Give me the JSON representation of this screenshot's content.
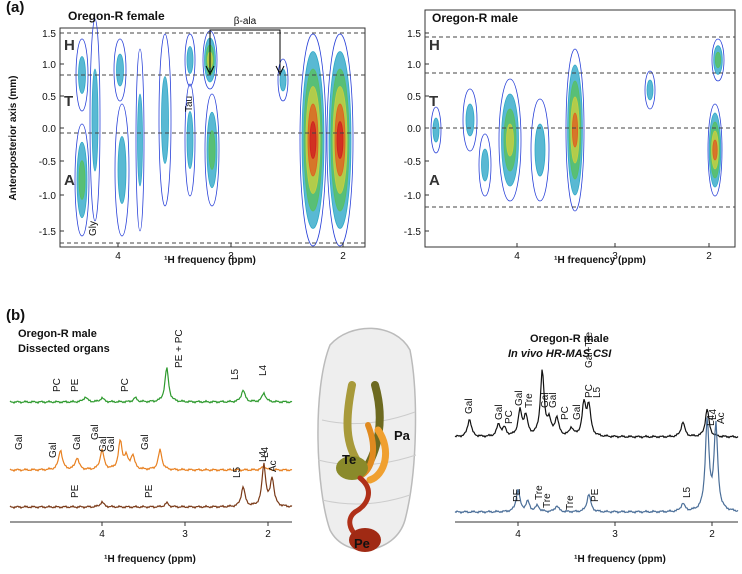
{
  "panel_a": {
    "label": "(a)",
    "left": {
      "title": "Oregon-R female",
      "y_axis_label": "Anteroposterior axis (mm)",
      "x_axis_label": "¹H frequency (ppm)",
      "yticks": [
        "1.5",
        "1.0",
        "0.5",
        "0.0",
        "-0.5",
        "-1.0",
        "-1.5"
      ],
      "xticks": [
        "4",
        "3",
        "2"
      ],
      "regions": [
        "H",
        "T",
        "A"
      ],
      "annotations": [
        "β-ala",
        "Tau",
        "Gly"
      ]
    },
    "right": {
      "title": "Oregon-R male",
      "x_axis_label": "¹H frequency (ppm)",
      "yticks": [
        "1.5",
        "1.0",
        "0.5",
        "0.0",
        "-0.5",
        "-1.0",
        "-1.5"
      ],
      "xticks": [
        "4",
        "3",
        "2"
      ],
      "regions": [
        "H",
        "T",
        "A"
      ]
    }
  },
  "panel_b": {
    "label": "(b)",
    "left": {
      "title_lines": [
        "Oregon-R male",
        "Dissected organs"
      ],
      "x_axis_label": "¹H frequency (ppm)",
      "xticks": [
        "4",
        "3",
        "2"
      ],
      "green_labels": [
        "PC",
        "PE",
        "PC",
        "PE + PC",
        "L5",
        "L4"
      ],
      "orange_labels": [
        "Gal",
        "Gal",
        "Gal",
        "Gal",
        "Gal",
        "Gal",
        "Gal",
        "L4"
      ],
      "brown_labels": [
        "PE",
        "PE",
        "L5",
        "L4",
        "Ac"
      ]
    },
    "illustration_labels": [
      "Pa",
      "Te",
      "Pe"
    ],
    "right": {
      "title_lines": [
        "Oregon-R male",
        "In vivo HR-MAS CSI"
      ],
      "x_axis_label": "¹H frequency (ppm)",
      "xticks": [
        "4",
        "3",
        "2"
      ],
      "black_labels": [
        "Gal",
        "Gal",
        "PC",
        "Gal",
        "Tre",
        "Gal+Tre",
        "Gal",
        "Gal",
        "PC",
        "Gal",
        "PC",
        "L5",
        "L4"
      ],
      "blue_labels": [
        "PE",
        "Tre",
        "Tre",
        "Tre",
        "PE",
        "L5",
        "L4",
        "Ac"
      ]
    }
  }
}
